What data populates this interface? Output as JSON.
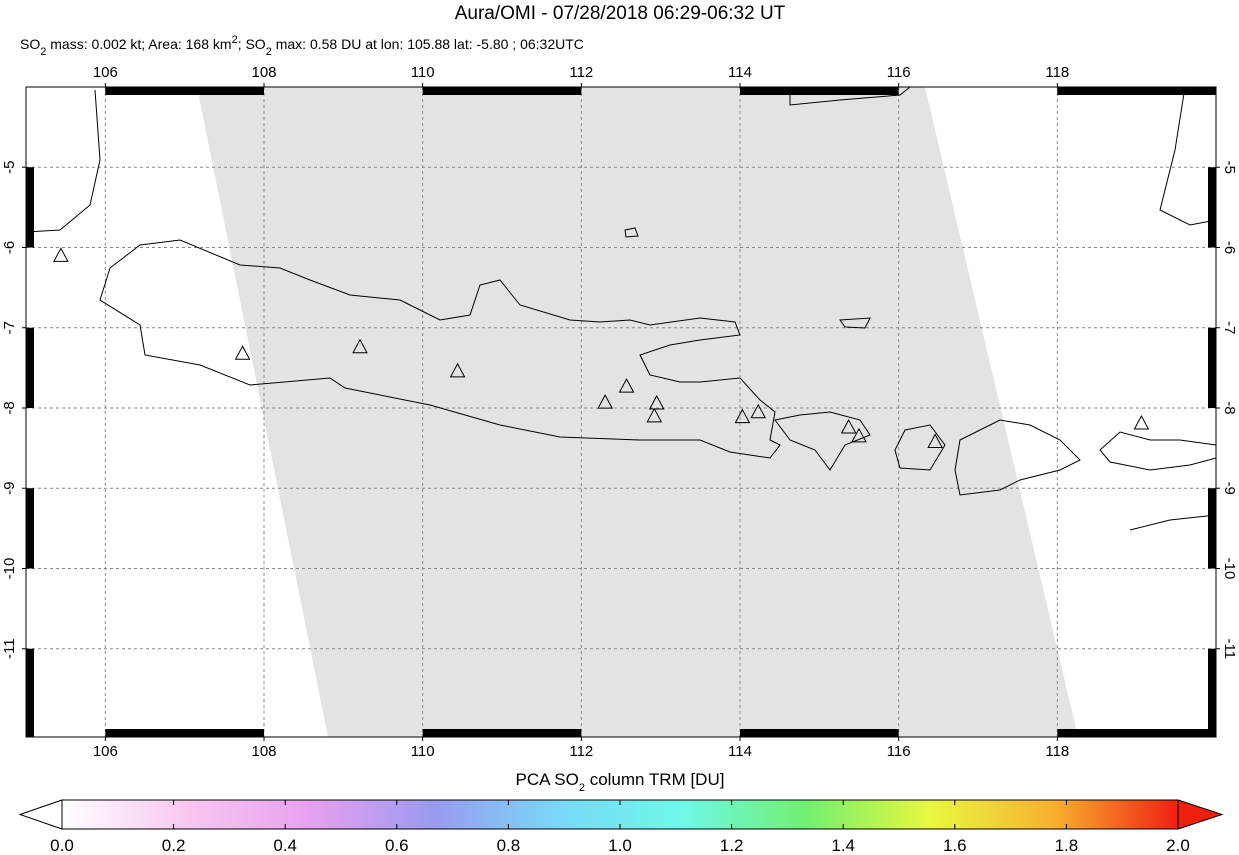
{
  "chart_data": {
    "type": "map",
    "title": "Aura/OMI - 07/28/2018 06:29-06:32 UT",
    "subtitle": [
      "SO",
      "2",
      " mass: 0.002 kt; Area: 168 km",
      "2",
      "; SO",
      "2",
      " max: 0.58 DU at lon: 105.88 lat: -5.80 ; 06:32UTC"
    ],
    "xlim": [
      105,
      120
    ],
    "ylim": [
      -12.1,
      -4
    ],
    "xticks": [
      106,
      108,
      110,
      112,
      114,
      116,
      118
    ],
    "yticks": [
      -5,
      -6,
      -7,
      -8,
      -9,
      -10,
      -11
    ],
    "grid": true,
    "points": {
      "lon": [
        105.44,
        107.73,
        109.21,
        110.44,
        112.3,
        112.57,
        112.95,
        112.92,
        114.03,
        114.23,
        115.37,
        115.5,
        116.46,
        119.06
      ],
      "lat": [
        -6.11,
        -7.33,
        -7.25,
        -7.55,
        -7.94,
        -7.74,
        -7.95,
        -8.11,
        -8.12,
        -8.06,
        -8.25,
        -8.36,
        -8.43,
        -8.2
      ]
    },
    "colorbar": {
      "label": [
        "PCA SO",
        "2",
        " column TRM [DU]"
      ],
      "lim": [
        0,
        2
      ],
      "colors": [
        "#ffffff",
        "#f8c8f0",
        "#e8a0f0",
        "#9a9af0",
        "#78d8f8",
        "#70f8e8",
        "#70f070",
        "#e8f840",
        "#f8b030",
        "#f02010"
      ],
      "ticks": [
        {
          "value": 0,
          "label": "0.0"
        },
        {
          "value": 0.2,
          "label": "0.2"
        },
        {
          "value": 0.4,
          "label": "0.4"
        },
        {
          "value": 0.6,
          "label": "0.6"
        },
        {
          "value": 0.8,
          "label": "0.8"
        },
        {
          "value": 1.0,
          "label": "1.0"
        },
        {
          "value": 1.2,
          "label": "1.2"
        },
        {
          "value": 1.4,
          "label": "1.4"
        },
        {
          "value": 1.6,
          "label": "1.6"
        },
        {
          "value": 1.8,
          "label": "1.8"
        },
        {
          "value": 2.0,
          "label": "2.0"
        }
      ]
    }
  }
}
